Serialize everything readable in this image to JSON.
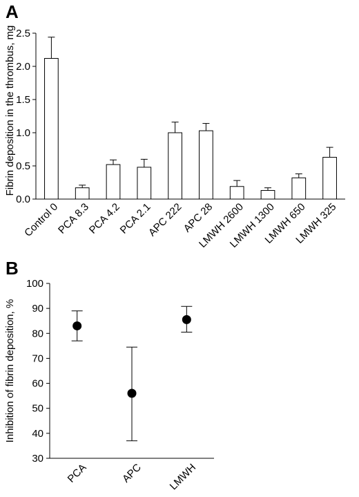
{
  "chart_data": [
    {
      "panel": "A",
      "type": "bar",
      "ylabel": "Fibrin deposition in the thrombus, mg",
      "ylim": [
        0,
        2.5
      ],
      "yticks": [
        "0.0",
        "0.5",
        "1.0",
        "1.5",
        "2.0",
        "2.5"
      ],
      "categories": [
        "Control 0",
        "PCA 8.3",
        "PCA 4.2",
        "PCA 2.1",
        "APC 222",
        "APC 28",
        "LMWH 2600",
        "LMWH 1300",
        "LMWH 650",
        "LMWH 325"
      ],
      "values": [
        2.12,
        0.17,
        0.52,
        0.48,
        1.0,
        1.03,
        0.19,
        0.13,
        0.32,
        0.63
      ],
      "error_upper": [
        0.32,
        0.04,
        0.07,
        0.12,
        0.16,
        0.11,
        0.09,
        0.04,
        0.06,
        0.15
      ],
      "grid": false,
      "legend": "none"
    },
    {
      "panel": "B",
      "type": "scatter",
      "ylabel": "Inhibition of fibrin deposition, %",
      "ylim": [
        30,
        100
      ],
      "yticks": [
        "30",
        "40",
        "50",
        "60",
        "70",
        "80",
        "90",
        "100"
      ],
      "categories": [
        "PCA",
        "APC",
        "LMWH"
      ],
      "values": [
        83,
        56,
        85.5
      ],
      "error_low": [
        77,
        37,
        80.5
      ],
      "error_high": [
        89,
        74.5,
        90.8
      ],
      "grid": false,
      "legend": "none"
    }
  ]
}
